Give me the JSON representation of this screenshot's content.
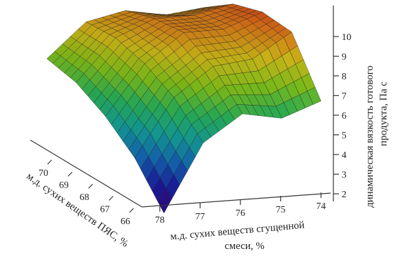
{
  "chart_data": {
    "type": "surface3d",
    "x_axis": {
      "label_line1": "м.д. сухих веществ сгущенной",
      "label_line2": "смеси, %",
      "ticks": [
        "78",
        "77",
        "76",
        "75",
        "74"
      ],
      "range": [
        74,
        78
      ]
    },
    "y_axis": {
      "label": "м.д. сухих веществ ПЯС, %",
      "ticks": [
        "66",
        "67",
        "68",
        "69",
        "70"
      ],
      "range": [
        66,
        70
      ]
    },
    "z_axis": {
      "label_line1": "динамическая вязкость готового",
      "label_line2": "продукта, Па с",
      "ticks": [
        "2",
        "3",
        "4",
        "5",
        "6",
        "7",
        "8",
        "9",
        "10"
      ],
      "range": [
        1.5,
        10.5
      ]
    },
    "surface": {
      "x_grid": [
        78,
        77,
        76,
        75,
        74
      ],
      "y_grid": [
        66,
        67,
        68,
        69,
        70
      ],
      "z": [
        [
          1.5,
          4.9,
          6.2,
          5.8,
          6.5
        ],
        [
          3.7,
          6.6,
          8.0,
          8.2,
          9.4
        ],
        [
          5.2,
          7.7,
          9.1,
          9.1,
          9.8
        ],
        [
          6.3,
          8.4,
          9.2,
          9.2,
          9.6
        ],
        [
          6.9,
          8.6,
          9.0,
          8.6,
          8.8
        ]
      ]
    },
    "colormap": [
      "#3b0a78",
      "#1b1aa0",
      "#1566b8",
      "#14a3a0",
      "#2ab85c",
      "#86c81a",
      "#d8c21a",
      "#e5781a",
      "#d01818"
    ],
    "grid": false
  }
}
